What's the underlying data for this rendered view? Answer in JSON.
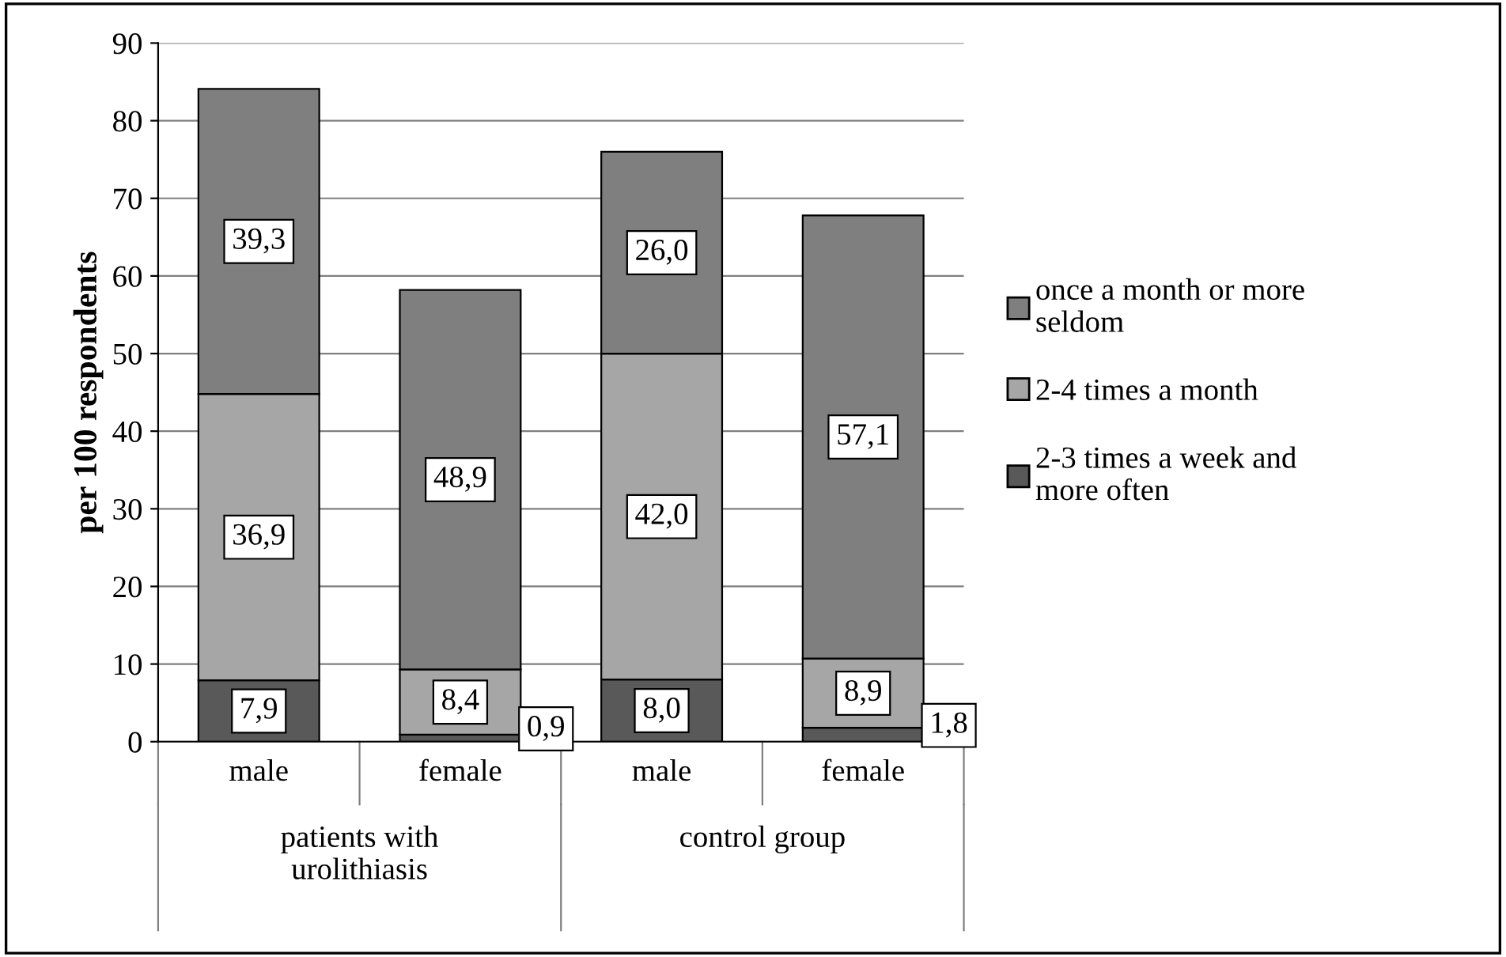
{
  "chart_data": {
    "type": "bar",
    "stacked": true,
    "ylabel": "per 100 respondents",
    "categories": [
      "male",
      "female",
      "male",
      "female"
    ],
    "series": [
      {
        "name": "2-3 times a week and more often",
        "color": "#595959",
        "values": [
          7.9,
          0.9,
          8.0,
          1.8
        ],
        "value_labels": [
          "7,9",
          "0,9",
          "8,0",
          "1,8"
        ]
      },
      {
        "name": "2-4 times a month",
        "color": "#a6a6a6",
        "values": [
          36.9,
          8.4,
          42.0,
          8.9
        ],
        "value_labels": [
          "36,9",
          "8,4",
          "42,0",
          "8,9"
        ]
      },
      {
        "name": "once a month or more seldom",
        "color": "#7f7f7f",
        "values": [
          39.3,
          48.9,
          26.0,
          57.1
        ],
        "value_labels": [
          "39,3",
          "48,9",
          "26,0",
          "57,1"
        ]
      }
    ],
    "annotations": [
      "patients with\nurolithiasis",
      "control group"
    ],
    "ylim": [
      0,
      90
    ],
    "yticks": [
      0,
      10,
      20,
      30,
      40,
      50,
      60,
      70,
      80,
      90
    ],
    "grid": "y",
    "legend": "right"
  }
}
